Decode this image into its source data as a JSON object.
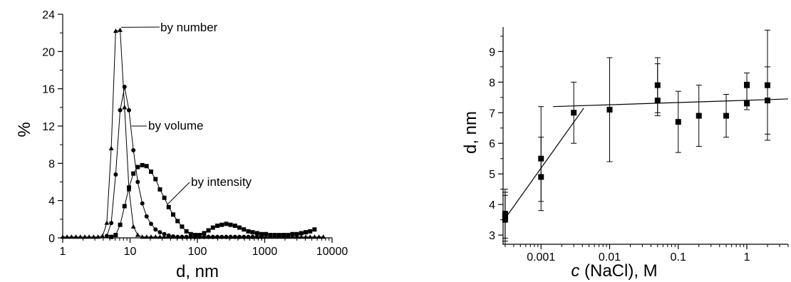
{
  "chart_data": [
    {
      "type": "line",
      "xlabel": "d, nm",
      "ylabel": "%",
      "xscale": "log",
      "xlim": [
        1,
        10000
      ],
      "ylim": [
        0,
        24
      ],
      "grid": false,
      "legend": "none",
      "xticks": [
        1,
        10,
        100,
        1000,
        10000
      ],
      "xtick_labels": [
        "1",
        "10",
        "100",
        "1000",
        "10000"
      ],
      "yticks": [
        0,
        4,
        8,
        12,
        16,
        20,
        24
      ],
      "ytick_labels": [
        "0",
        "4",
        "8",
        "12",
        "16",
        "20",
        "24"
      ],
      "annotations": [
        {
          "text": "by number",
          "series_index": 0
        },
        {
          "text": "by volume",
          "series_index": 1
        },
        {
          "text": "by intensity",
          "series_index": 2
        }
      ],
      "series": [
        {
          "marker": "triangle",
          "x": [
            1,
            1.16,
            1.35,
            1.57,
            1.83,
            2.13,
            2.47,
            2.88,
            3.35,
            3.9,
            4.52,
            5.26,
            6.12,
            7.12,
            8.28,
            9.63,
            11.2,
            13.0,
            15.2,
            17.6,
            20.5,
            23.9,
            27.8,
            32.3,
            37.5,
            43.7,
            50.8,
            59.1,
            68.7,
            79.9,
            93,
            108,
            126,
            146,
            170,
            198,
            230,
            268,
            311,
            362,
            421,
            490,
            570,
            662,
            771,
            896,
            1040,
            1210,
            1410,
            1640,
            1910,
            2220,
            2580,
            3000,
            3490,
            4060,
            4720,
            5490,
            6380,
            7420
          ],
          "y": [
            0.1,
            0.1,
            0.1,
            0.1,
            0.1,
            0.1,
            0.1,
            0.1,
            0.1,
            0.2,
            1.6,
            9.6,
            22.2,
            22.3,
            14.0,
            5.2,
            1.2,
            0.3,
            0.1,
            0.1,
            0.1,
            0.1,
            0.1,
            0.1,
            0.1,
            0.1,
            0.1,
            0.1,
            0.1,
            0.1,
            0.1,
            0.1,
            0.1,
            0.1,
            0.1,
            0.1,
            0.1,
            0.1,
            0.1,
            0.1,
            0.1,
            0.1,
            0.1,
            0.1,
            0.1,
            0.1,
            0.1,
            0.1,
            0.1,
            0.1,
            0.1,
            0.1,
            0.1,
            0.1,
            0.1,
            0.1,
            0.1,
            0.1,
            0.1,
            0.1
          ]
        },
        {
          "marker": "circle",
          "x": [
            4.52,
            5.26,
            6.12,
            7.12,
            8.28,
            9.63,
            11.2,
            13.0,
            15.2,
            17.6,
            20.5,
            23.9,
            27.8,
            32.3,
            37.5,
            43.7,
            50.8,
            59.1,
            68.7,
            79.9,
            93,
            108,
            126,
            146,
            170,
            198,
            230,
            268,
            311,
            362,
            421,
            490,
            570,
            662,
            771,
            896
          ],
          "y": [
            0.2,
            1.6,
            6.8,
            13.7,
            16.2,
            13.7,
            9.4,
            6.0,
            3.7,
            2.3,
            1.5,
            0.9,
            0.6,
            0.4,
            0.25,
            0.15,
            0.1,
            0.1,
            0.1,
            0.1,
            0.1,
            0.1,
            0.1,
            0.1,
            0.1,
            0.1,
            0.1,
            0.1,
            0.1,
            0.1,
            0.1,
            0.1,
            0.1,
            0.1,
            0.1,
            0.1
          ]
        },
        {
          "marker": "square",
          "x": [
            5.26,
            6.12,
            7.12,
            8.28,
            9.63,
            11.2,
            13.0,
            15.2,
            17.6,
            20.5,
            23.9,
            27.8,
            32.3,
            37.5,
            43.7,
            50.8,
            59.1,
            68.7,
            79.9,
            93,
            108,
            126,
            146,
            170,
            198,
            230,
            268,
            311,
            362,
            421,
            490,
            570,
            662,
            771,
            896,
            1040,
            1210,
            1410,
            1640,
            1910,
            2220,
            2580,
            3000,
            3490,
            4060,
            4720,
            5490
          ],
          "y": [
            0.1,
            0.3,
            1.4,
            3.4,
            5.4,
            6.9,
            7.6,
            7.8,
            7.7,
            7.1,
            6.3,
            5.2,
            4.3,
            3.3,
            2.5,
            1.8,
            1.2,
            0.7,
            0.4,
            0.3,
            0.3,
            0.5,
            0.8,
            1.1,
            1.3,
            1.4,
            1.5,
            1.4,
            1.3,
            1.1,
            0.9,
            0.7,
            0.6,
            0.5,
            0.4,
            0.4,
            0.3,
            0.3,
            0.3,
            0.3,
            0.3,
            0.4,
            0.4,
            0.5,
            0.6,
            0.7,
            0.9
          ]
        }
      ]
    },
    {
      "type": "scatter",
      "xlabel_italic": "c",
      "xlabel_rest": " (NaCl), M",
      "ylabel": "d, nm",
      "xscale": "log",
      "xlim": [
        0.00028,
        4
      ],
      "ylim": [
        2.7,
        9.8
      ],
      "grid": false,
      "legend": "none",
      "xticks": [
        0.001,
        0.01,
        0.1,
        1
      ],
      "xtick_labels": [
        "0.001",
        "0.01",
        "0.1",
        "1"
      ],
      "yticks": [
        3,
        4,
        5,
        6,
        7,
        8,
        9
      ],
      "ytick_labels": [
        "3",
        "4",
        "5",
        "6",
        "7",
        "8",
        "9"
      ],
      "points": [
        {
          "x": 0.0003,
          "y": 3.5,
          "err_lo": 2.7,
          "err_hi": 4.3
        },
        {
          "x": 0.0003,
          "y": 3.6,
          "err_lo": 2.8,
          "err_hi": 4.4
        },
        {
          "x": 0.0003,
          "y": 3.7,
          "err_lo": 2.9,
          "err_hi": 4.5
        },
        {
          "x": 0.001,
          "y": 4.9,
          "err_lo": 3.8,
          "err_hi": 6.2
        },
        {
          "x": 0.001,
          "y": 5.5,
          "err_lo": 4.1,
          "err_hi": 7.2
        },
        {
          "x": 0.003,
          "y": 7.0,
          "err_lo": 6.0,
          "err_hi": 8.0
        },
        {
          "x": 0.01,
          "y": 7.1,
          "err_lo": 5.4,
          "err_hi": 8.8
        },
        {
          "x": 0.05,
          "y": 7.9,
          "err_lo": 7.0,
          "err_hi": 8.8
        },
        {
          "x": 0.05,
          "y": 7.4,
          "err_lo": 6.9,
          "err_hi": 8.6
        },
        {
          "x": 0.1,
          "y": 6.7,
          "err_lo": 5.7,
          "err_hi": 7.7
        },
        {
          "x": 0.2,
          "y": 6.9,
          "err_lo": 5.9,
          "err_hi": 7.9
        },
        {
          "x": 0.5,
          "y": 6.9,
          "err_lo": 6.2,
          "err_hi": 7.6
        },
        {
          "x": 1,
          "y": 7.9,
          "err_lo": 7.3,
          "err_hi": 8.3
        },
        {
          "x": 1,
          "y": 7.3,
          "err_lo": 7.1,
          "err_hi": 8.0
        },
        {
          "x": 2,
          "y": 7.9,
          "err_lo": 6.3,
          "err_hi": 9.7
        },
        {
          "x": 2,
          "y": 7.4,
          "err_lo": 6.1,
          "err_hi": 8.5
        }
      ],
      "fit_lines": [
        {
          "x": [
            0.00028,
            0.0042
          ],
          "y": [
            3.45,
            7.15
          ]
        },
        {
          "x": 0.0015,
          "y_at": 7.2,
          "x_end": 4,
          "y_end": 7.45
        }
      ]
    }
  ]
}
